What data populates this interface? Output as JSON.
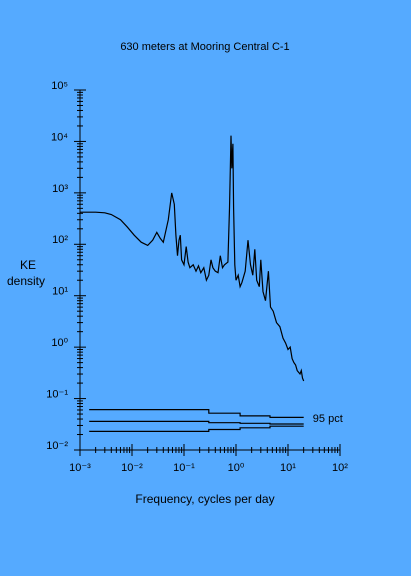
{
  "chart_data": {
    "type": "line",
    "title": "630 meters at Mooring Central C-1",
    "xlabel": "Frequency, cycles per day",
    "ylabel": [
      "KE",
      "density"
    ],
    "xscale": "log",
    "yscale": "log",
    "xlim": [
      0.001,
      100
    ],
    "ylim": [
      0.01,
      100000
    ],
    "xticks": [
      {
        "value": 0.001,
        "label": "10⁻³"
      },
      {
        "value": 0.01,
        "label": "10⁻²"
      },
      {
        "value": 0.1,
        "label": "10⁻¹"
      },
      {
        "value": 1,
        "label": "10⁰"
      },
      {
        "value": 10,
        "label": "10¹"
      },
      {
        "value": 100,
        "label": "10²"
      }
    ],
    "yticks": [
      {
        "value": 0.01,
        "label": "10⁻²"
      },
      {
        "value": 0.1,
        "label": "10⁻¹"
      },
      {
        "value": 1,
        "label": "10⁰"
      },
      {
        "value": 10,
        "label": "10¹"
      },
      {
        "value": 100,
        "label": "10²"
      },
      {
        "value": 1000,
        "label": "10³"
      },
      {
        "value": 10000,
        "label": "10⁴"
      },
      {
        "value": 100000,
        "label": "10⁵"
      }
    ],
    "annotations": [
      {
        "text": "95 pct",
        "x": 30,
        "y": 0.04
      }
    ],
    "series": [
      {
        "color": "#000000",
        "x": [
          0.001,
          0.002,
          0.003,
          0.004,
          0.006,
          0.008,
          0.011,
          0.015,
          0.02,
          0.025,
          0.03,
          0.035,
          0.04,
          0.05,
          0.058,
          0.065,
          0.07,
          0.075,
          0.08,
          0.085,
          0.09,
          0.1,
          0.11,
          0.12,
          0.13,
          0.15,
          0.17,
          0.19,
          0.21,
          0.24,
          0.27,
          0.3,
          0.33,
          0.36,
          0.4,
          0.45,
          0.5,
          0.55,
          0.6,
          0.7,
          0.75,
          0.8,
          0.83,
          0.87,
          0.9,
          0.95,
          1.0,
          1.1,
          1.2,
          1.3,
          1.5,
          1.7,
          1.9,
          2.1,
          2.3,
          2.5,
          2.8,
          3.0,
          3.3,
          3.7,
          4.2,
          4.6,
          5.2,
          6,
          7,
          8,
          9,
          10,
          11,
          12,
          13,
          14,
          15,
          17,
          18,
          19,
          20
        ],
        "values": [
          420,
          420,
          410,
          380,
          300,
          220,
          150,
          110,
          95,
          120,
          170,
          130,
          110,
          300,
          1000,
          600,
          150,
          60,
          120,
          150,
          50,
          40,
          90,
          45,
          35,
          40,
          30,
          38,
          28,
          35,
          20,
          25,
          50,
          35,
          30,
          28,
          60,
          35,
          40,
          45,
          500,
          13000,
          3000,
          9000,
          500,
          40,
          20,
          25,
          15,
          18,
          30,
          120,
          40,
          25,
          80,
          20,
          15,
          50,
          12,
          8,
          30,
          6,
          5,
          3,
          2.5,
          1.5,
          1.2,
          0.9,
          1.0,
          0.6,
          0.5,
          0.45,
          0.35,
          0.3,
          0.35,
          0.25,
          0.22
        ]
      },
      {
        "color": "#000000",
        "x": [
          0.0015,
          0.3,
          0.3,
          1.2,
          1.2,
          4.5,
          4.5,
          20
        ],
        "values": [
          0.061,
          0.061,
          0.052,
          0.052,
          0.046,
          0.046,
          0.043,
          0.043
        ]
      },
      {
        "color": "#000000",
        "x": [
          0.0015,
          0.3,
          0.3,
          1.2,
          1.2,
          4.5,
          4.5,
          20
        ],
        "values": [
          0.036,
          0.036,
          0.034,
          0.034,
          0.033,
          0.033,
          0.032,
          0.032
        ]
      },
      {
        "color": "#000000",
        "x": [
          0.0015,
          0.3,
          0.3,
          1.2,
          1.2,
          4.5,
          4.5,
          20
        ],
        "values": [
          0.023,
          0.023,
          0.025,
          0.025,
          0.027,
          0.027,
          0.029,
          0.029
        ]
      }
    ]
  }
}
